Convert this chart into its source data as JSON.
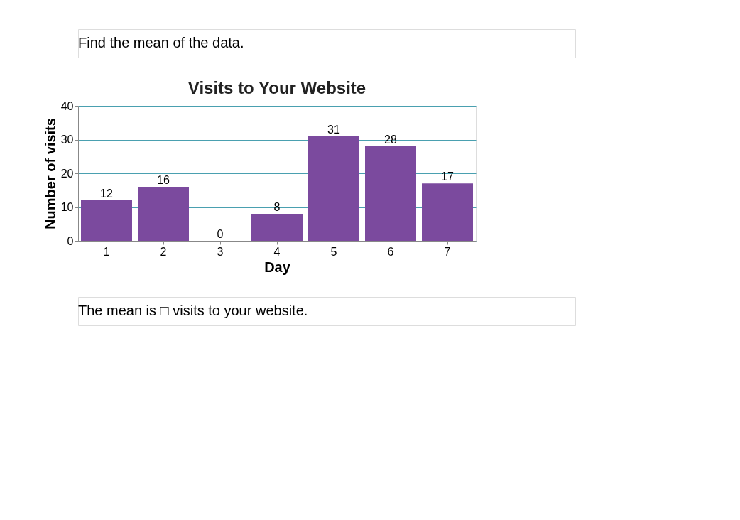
{
  "chart_data": {
    "type": "bar",
    "title": "Visits to Your Website",
    "xlabel": "Day",
    "ylabel": "Number of visits",
    "categories": [
      "1",
      "2",
      "3",
      "4",
      "5",
      "6",
      "7"
    ],
    "values": [
      12,
      16,
      0,
      8,
      31,
      28,
      17
    ],
    "color": "#7b4a9e",
    "ylim": [
      0,
      40
    ],
    "yticks": [
      0,
      10,
      20,
      30,
      40
    ],
    "grid": "y",
    "data_labels": true,
    "annotations": [
      "Find the mean of the data.",
      "The mean is □ visits to your website."
    ]
  }
}
